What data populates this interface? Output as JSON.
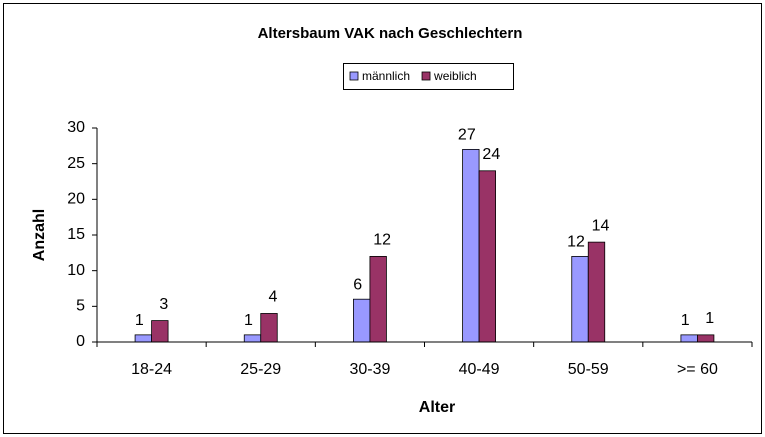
{
  "chart_data": {
    "type": "bar",
    "title": "Altersbaum VAK nach Geschlechtern",
    "x_label": "Alter",
    "y_label": "Anzahl",
    "categories": [
      "18-24",
      "25-29",
      "30-39",
      "40-49",
      "50-59",
      ">= 60"
    ],
    "series": [
      {
        "name": "männlich",
        "color": "#9999ff",
        "values": [
          1,
          1,
          6,
          27,
          12,
          1
        ]
      },
      {
        "name": "weiblich",
        "color": "#993366",
        "values": [
          3,
          4,
          12,
          24,
          14,
          1
        ]
      }
    ],
    "ylim": [
      0,
      30
    ],
    "yticks": [
      0,
      5,
      10,
      15,
      20,
      25,
      30
    ],
    "grid": false,
    "legend": "top"
  }
}
